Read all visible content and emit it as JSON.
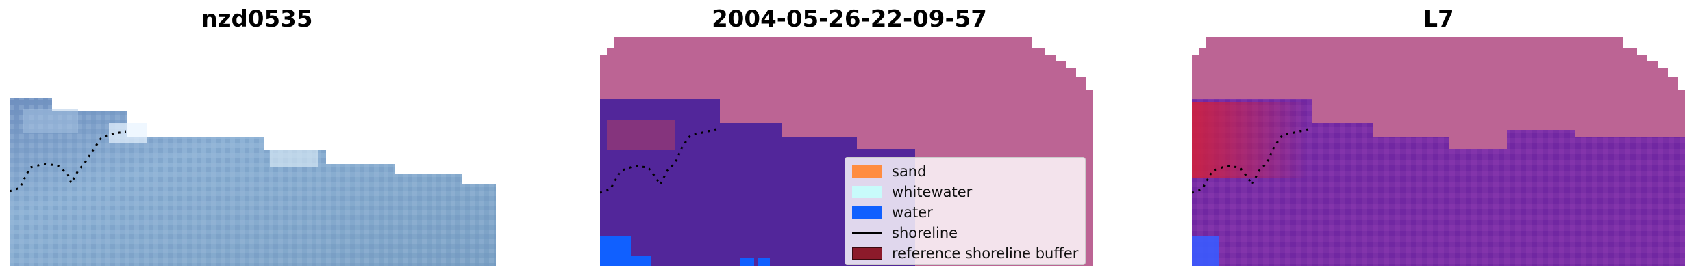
{
  "panels": [
    {
      "title": "nzd0535"
    },
    {
      "title": "2004-05-26-22-09-57"
    },
    {
      "title": "L7"
    }
  ],
  "legend": {
    "items": [
      {
        "label": "sand",
        "color": "#ff8c40",
        "kind": "patch"
      },
      {
        "label": "whitewater",
        "color": "#c8fbfb",
        "kind": "patch"
      },
      {
        "label": "water",
        "color": "#1060ff",
        "kind": "patch"
      },
      {
        "label": "shoreline",
        "color": "#000000",
        "kind": "line"
      },
      {
        "label": "reference shoreline buffer",
        "color": "#8c1a2a",
        "kind": "patch"
      }
    ]
  },
  "colors": {
    "land_mauve": "#bc6494",
    "classified_purple": "#52269a",
    "water_blue": "#1060ff",
    "buffer_red": "#8c1a2a",
    "rgb_base": "#7fa3c7"
  }
}
